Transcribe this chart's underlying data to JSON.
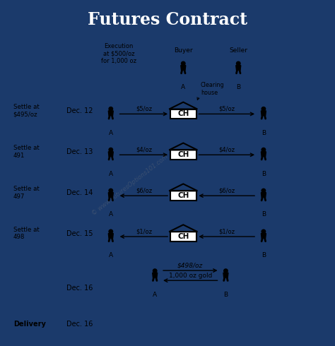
{
  "title": "Futures Contract",
  "title_bg": "#1b3a6b",
  "title_color": "#ffffff",
  "body_bg": "#ffffff",
  "border_color": "#1b3a6b",
  "settle_rows": [
    {
      "settle": "Settle at\n$495/oz",
      "date": "Dec. 12",
      "dir": "right",
      "lbl": "$5/oz",
      "ch_note": "Clearing\nhouse"
    },
    {
      "settle": "Settle at\n491",
      "date": "Dec. 13",
      "dir": "right",
      "lbl": "$4/oz",
      "ch_note": null
    },
    {
      "settle": "Settle at\n497",
      "date": "Dec. 14",
      "dir": "left",
      "lbl": "$6/oz",
      "ch_note": null
    },
    {
      "settle": "Settle at\n498",
      "date": "Dec. 15",
      "dir": "left",
      "lbl": "$1/oz",
      "ch_note": null
    }
  ],
  "execution_text": "Execution\nat $500/oz\nfor 1,000 oz",
  "delivery_date": "Dec. 16",
  "delivery_money": "$498/oz",
  "delivery_goods": "1,000 oz gold",
  "delivery_label": "Delivery",
  "watermark": "© www.FuturesOptions101.com",
  "fig_w": 4.74,
  "fig_h": 4.9,
  "dpi": 100
}
